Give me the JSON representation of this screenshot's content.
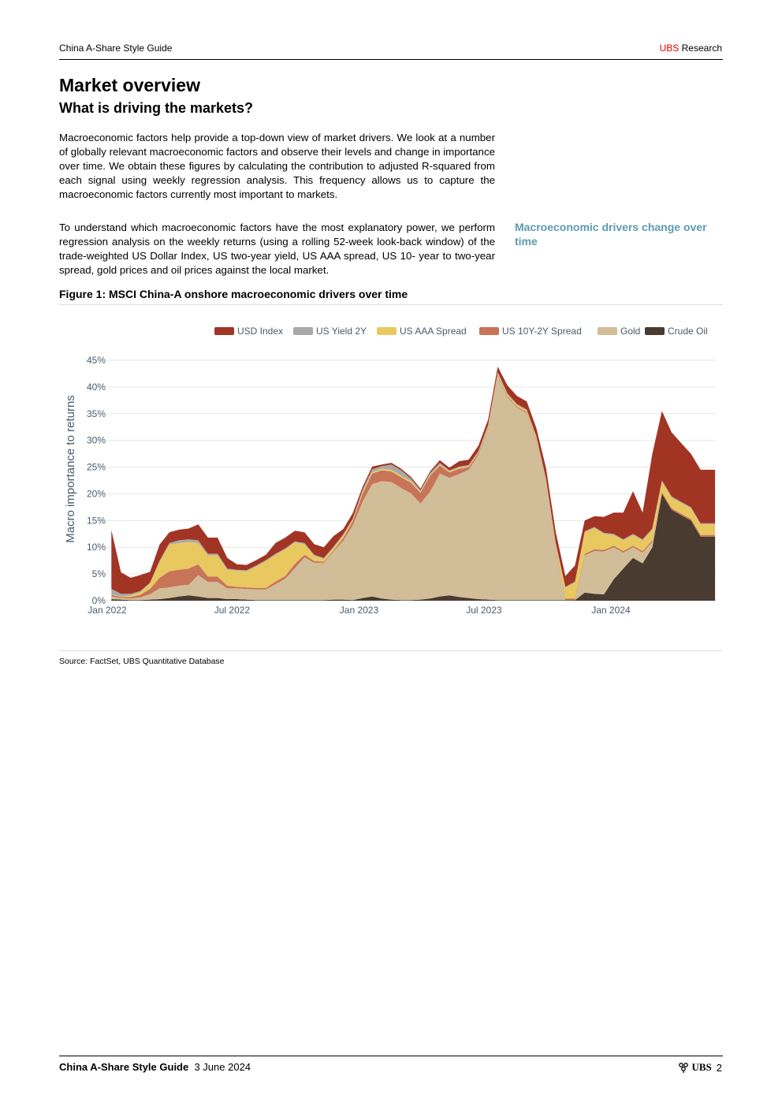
{
  "header": {
    "doc_title": "China A-Share Style Guide",
    "brand": "UBS",
    "section": "Research"
  },
  "title": "Market overview",
  "subtitle": "What is driving the markets?",
  "paragraphs": {
    "p1": "Macroeconomic factors help provide a top-down view of market drivers. We look at a number of globally relevant macroeconomic factors and observe their levels and change in importance over time. We obtain these figures by calculating the contribution to adjusted R-squared from each signal using weekly regression analysis. This frequency allows us to capture the macroeconomic factors currently most important to markets.",
    "p2": "To understand which macroeconomic factors have the most explanatory power, we perform regression analysis on the weekly returns (using a rolling 52-week look-back window) of the trade-weighted US Dollar Index, US two-year yield, US AAA spread, US 10- year to two-year spread, gold prices and oil prices against the local market."
  },
  "sidebar_note": "Macroeconomic drivers change over time",
  "figure_title": "Figure 1: MSCI China-A onshore macroeconomic drivers over time",
  "source": "Source: FactSet, UBS Quantitative Database",
  "footer": {
    "doc_title": "China A-Share Style Guide",
    "date": "3 June 2024",
    "brand": "UBS",
    "page": "2"
  },
  "chart_data": {
    "type": "area",
    "stacked": true,
    "ylabel": "Macro importance to returns",
    "ylim": [
      0,
      45
    ],
    "y_ticks": [
      "0%",
      "5%",
      "10%",
      "15%",
      "20%",
      "25%",
      "30%",
      "35%",
      "40%",
      "45%"
    ],
    "x_ticks": [
      "Jan 2022",
      "Jul 2022",
      "Jan 2023",
      "Jul 2023",
      "Jan 2024"
    ],
    "legend_position": "top-right",
    "grid": true,
    "x": [
      "2022-01-07",
      "2022-01-21",
      "2022-02-04",
      "2022-02-18",
      "2022-03-04",
      "2022-03-18",
      "2022-04-01",
      "2022-04-15",
      "2022-04-29",
      "2022-05-13",
      "2022-05-27",
      "2022-06-10",
      "2022-06-24",
      "2022-07-08",
      "2022-07-22",
      "2022-08-05",
      "2022-08-19",
      "2022-09-02",
      "2022-09-16",
      "2022-09-30",
      "2022-10-14",
      "2022-10-28",
      "2022-11-11",
      "2022-11-25",
      "2022-12-09",
      "2022-12-23",
      "2023-01-06",
      "2023-01-20",
      "2023-02-03",
      "2023-02-17",
      "2023-03-03",
      "2023-03-17",
      "2023-03-31",
      "2023-04-14",
      "2023-04-28",
      "2023-05-12",
      "2023-05-26",
      "2023-06-09",
      "2023-06-23",
      "2023-07-07",
      "2023-07-21",
      "2023-08-04",
      "2023-08-18",
      "2023-09-01",
      "2023-09-15",
      "2023-09-29",
      "2023-10-13",
      "2023-10-27",
      "2023-11-10",
      "2023-11-24",
      "2023-12-08",
      "2023-12-22",
      "2024-01-05",
      "2024-01-19",
      "2024-02-02",
      "2024-02-16",
      "2024-03-01",
      "2024-03-15",
      "2024-03-29",
      "2024-04-12",
      "2024-04-26",
      "2024-05-10",
      "2024-05-24",
      "2024-05-31"
    ],
    "series": [
      {
        "name": "Crude Oil",
        "color": "#4a3b30",
        "values": [
          0.3,
          0.2,
          0.1,
          0.1,
          0.2,
          0.3,
          0.5,
          0.8,
          1.0,
          0.8,
          0.5,
          0.5,
          0.3,
          0.3,
          0.2,
          0.1,
          0.1,
          0.1,
          0.1,
          0.1,
          0.1,
          0.1,
          0.1,
          0.2,
          0.2,
          0.1,
          0.5,
          0.8,
          0.4,
          0.2,
          0.1,
          0.1,
          0.2,
          0.4,
          0.8,
          1.0,
          0.7,
          0.5,
          0.3,
          0.2,
          0.1,
          0.1,
          0.1,
          0.1,
          0.1,
          0.1,
          0.1,
          0.1,
          0.1,
          1.5,
          1.3,
          1.2,
          4,
          6,
          8,
          7,
          10,
          20,
          17,
          16,
          15,
          12,
          12,
          12
        ]
      },
      {
        "name": "Gold",
        "color": "#d1bd98",
        "values": [
          0.5,
          0.3,
          0.3,
          0.5,
          1,
          2,
          2,
          2,
          2,
          4,
          3,
          3,
          2,
          2,
          2,
          2,
          2,
          3,
          4,
          6,
          8,
          7,
          7,
          9,
          11,
          14,
          18,
          21,
          22,
          22,
          21,
          20,
          18,
          20,
          23,
          22,
          23,
          24,
          27,
          32,
          42,
          38,
          36,
          35,
          30,
          22,
          10,
          0,
          0,
          7,
          8,
          8,
          6,
          3,
          2,
          2,
          1,
          0,
          0,
          0,
          0,
          0,
          0,
          0
        ]
      },
      {
        "name": "US 10Y-2Y Spread",
        "color": "#c77459",
        "values": [
          0.3,
          0.2,
          0.3,
          0.5,
          1,
          2,
          3,
          3,
          3,
          2,
          1,
          1,
          0.5,
          0.3,
          0.3,
          0.3,
          0.3,
          0.5,
          0.5,
          0.8,
          0.5,
          0.3,
          0.2,
          0.2,
          0.5,
          0.8,
          1.5,
          2,
          2,
          2,
          2,
          2,
          2,
          3,
          1.5,
          1,
          1,
          0.5,
          0.3,
          0.2,
          0.2,
          0.2,
          0.2,
          0.2,
          0.2,
          0.2,
          0.3,
          0.3,
          0.3,
          0.3,
          0.3,
          0.3,
          0.3,
          0.3,
          0.3,
          0.3,
          0.3,
          0.3,
          0.3,
          0.3,
          0.3,
          0.3,
          0.3,
          0.3
        ]
      },
      {
        "name": "US AAA Spread",
        "color": "#e9c860",
        "values": [
          0.1,
          0.1,
          0.3,
          0.5,
          1,
          3,
          5,
          5,
          5,
          4,
          4,
          4,
          3,
          3,
          3,
          4,
          5,
          5,
          5,
          4,
          2,
          1,
          0.5,
          0.5,
          0.5,
          0.3,
          0.3,
          0.3,
          0.3,
          0.3,
          0.3,
          0.3,
          0.2,
          0.2,
          0.2,
          0.2,
          0.2,
          0.2,
          0.2,
          0.3,
          0.3,
          0.3,
          0.3,
          0.3,
          0.3,
          0.3,
          0.3,
          2,
          3,
          4,
          4,
          3,
          2,
          2,
          2,
          2,
          2,
          2,
          2,
          2,
          2,
          2,
          2,
          2
        ]
      },
      {
        "name": "US Yield 2Y",
        "color": "#a8a8a8",
        "values": [
          1,
          0.5,
          0.3,
          0.2,
          0.2,
          0.2,
          0.3,
          0.5,
          0.5,
          0.5,
          0.3,
          0.3,
          0.2,
          0.2,
          0.2,
          0.2,
          0.2,
          0.2,
          0.2,
          0.2,
          0.2,
          0.2,
          0.2,
          0.2,
          0.2,
          0.2,
          0.5,
          0.5,
          0.5,
          1,
          1,
          0.5,
          0.3,
          0.3,
          0.3,
          0.2,
          0.2,
          0.2,
          0.2,
          0.2,
          0.2,
          0.2,
          0.2,
          0.2,
          0.2,
          0.2,
          0.2,
          0.2,
          0.2,
          0.2,
          0.2,
          0.2,
          0.2,
          0.2,
          0.2,
          0.2,
          0.2,
          0.2,
          0.2,
          0.2,
          0.2,
          0.2,
          0.2,
          0.2
        ]
      },
      {
        "name": "USD Index",
        "color": "#a23424",
        "values": [
          11,
          4,
          3,
          3,
          2,
          3,
          2,
          2,
          2,
          3,
          3,
          3,
          2,
          1,
          1,
          1,
          1,
          2,
          2,
          2,
          2,
          2,
          2,
          2,
          1,
          1,
          0.5,
          0.5,
          0.3,
          0.3,
          0.3,
          0.3,
          0.3,
          0.3,
          0.5,
          0.5,
          1,
          1,
          1,
          1,
          1,
          1.5,
          1.5,
          1.5,
          1.5,
          2,
          2,
          2,
          3,
          2,
          2,
          3,
          4,
          5,
          8,
          5,
          14,
          13,
          12,
          11,
          10,
          10,
          10,
          10
        ]
      }
    ]
  }
}
